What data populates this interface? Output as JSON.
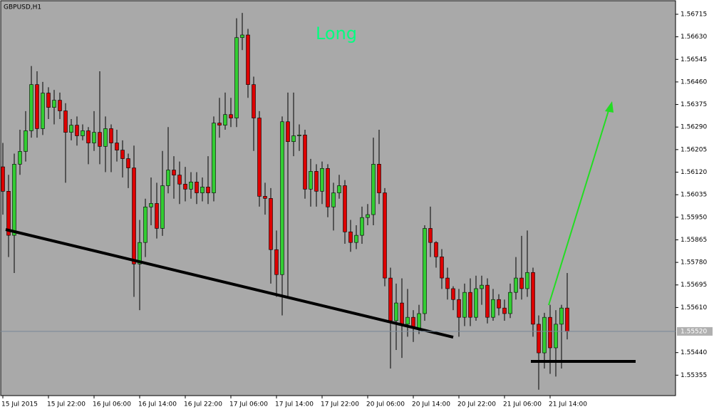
{
  "chart_data": {
    "type": "candlestick",
    "title": "GBPUSD,H1",
    "annotation": "Long",
    "up_color": "#32cd32",
    "down_color": "#dd0000",
    "wick_color": "#000000",
    "background": "#a9a9a9",
    "categories": [
      "15 Jul 2015",
      null,
      null,
      null,
      null,
      null,
      null,
      null,
      "15 Jul 22:00",
      null,
      null,
      null,
      null,
      null,
      null,
      null,
      "16 Jul 06:00",
      null,
      null,
      null,
      null,
      null,
      null,
      null,
      "16 Jul 14:00",
      null,
      null,
      null,
      null,
      null,
      null,
      null,
      "16 Jul 22:00",
      null,
      null,
      null,
      null,
      null,
      null,
      null,
      "17 Jul 06:00",
      null,
      null,
      null,
      null,
      null,
      null,
      null,
      "17 Jul 14:00",
      null,
      null,
      null,
      null,
      null,
      null,
      null,
      "17 Jul 22:00",
      null,
      null,
      null,
      null,
      null,
      null,
      null,
      "20 Jul 06:00",
      null,
      null,
      null,
      null,
      null,
      null,
      null,
      "20 Jul 14:00",
      null,
      null,
      null,
      null,
      null,
      null,
      null,
      "20 Jul 22:00",
      null,
      null,
      null,
      null,
      null,
      null,
      null,
      "21 Jul 06:00",
      null,
      null,
      null,
      null,
      null,
      null,
      null,
      "21 Jul 14:00",
      null,
      null,
      null
    ],
    "open": [
      1.5614,
      1.56048,
      1.55882,
      1.5615,
      1.56198,
      1.56276,
      1.5645,
      1.56284,
      1.56418,
      1.56364,
      1.56391,
      1.56351,
      1.5627,
      1.56297,
      1.56257,
      1.56276,
      1.5623,
      1.5627,
      1.56217,
      1.56284,
      1.5623,
      1.56203,
      1.56171,
      1.56136,
      1.55774,
      1.55855,
      1.55989,
      1.56002,
      1.55908,
      1.56069,
      1.56128,
      1.56109,
      1.56075,
      1.56056,
      1.56083,
      1.56042,
      1.56064,
      1.56042,
      1.56305,
      1.56297,
      1.56337,
      1.56324,
      1.56627,
      1.56637,
      1.5645,
      1.56324,
      1.56029,
      1.56021,
      1.55828,
      1.55734,
      1.5631,
      1.56235,
      1.56257,
      1.5626,
      1.56056,
      1.56123,
      1.56048,
      1.56134,
      1.55989,
      1.56042,
      1.56069,
      1.55895,
      1.55855,
      1.55882,
      1.55949,
      1.5596,
      1.5615,
      1.56042,
      1.55721,
      1.5556,
      1.55627,
      1.55547,
      1.55573,
      1.55533,
      1.55587,
      1.55908,
      1.55855,
      1.55801,
      1.55721,
      1.55681,
      1.5564,
      1.55573,
      1.55667,
      1.55573,
      1.55681,
      1.55694,
      1.55573,
      1.5564,
      1.55608,
      1.55587,
      1.55667,
      1.55721,
      1.55681,
      1.55742,
      1.55547,
      1.55439,
      1.55573,
      1.55458,
      1.55547,
      1.55608
    ],
    "high": [
      1.5623,
      1.5611,
      1.5619,
      1.5628,
      1.5635,
      1.5652,
      1.565,
      1.5646,
      1.5644,
      1.5643,
      1.5642,
      1.5638,
      1.5632,
      1.5633,
      1.563,
      1.5629,
      1.5635,
      1.565,
      1.5633,
      1.563,
      1.5628,
      1.5624,
      1.5619,
      1.5622,
      1.5594,
      1.5602,
      1.561,
      1.5608,
      1.562,
      1.5629,
      1.5618,
      1.5616,
      1.5614,
      1.5612,
      1.5612,
      1.561,
      1.5618,
      1.5633,
      1.564,
      1.5642,
      1.564,
      1.567,
      1.5672,
      1.5666,
      1.5648,
      1.5635,
      1.5608,
      1.5606,
      1.559,
      1.5633,
      1.5642,
      1.5642,
      1.563,
      1.5628,
      1.5617,
      1.5615,
      1.5616,
      1.5615,
      1.5608,
      1.5611,
      1.5609,
      1.5594,
      1.5592,
      1.5599,
      1.56,
      1.5625,
      1.5628,
      1.5606,
      1.5576,
      1.557,
      1.5572,
      1.5568,
      1.556,
      1.5562,
      1.5592,
      1.5599,
      1.5586,
      1.5583,
      1.5576,
      1.5569,
      1.5568,
      1.557,
      1.5572,
      1.5573,
      1.5573,
      1.5572,
      1.5568,
      1.5566,
      1.5564,
      1.557,
      1.558,
      1.5588,
      1.559,
      1.5576,
      1.5558,
      1.5559,
      1.5562,
      1.556,
      1.5562,
      1.5574
    ],
    "low": [
      1.5596,
      1.558,
      1.5574,
      1.5611,
      1.5616,
      1.5625,
      1.5625,
      1.5626,
      1.5632,
      1.563,
      1.5632,
      1.5608,
      1.5624,
      1.5622,
      1.5624,
      1.5615,
      1.562,
      1.5615,
      1.5612,
      1.5612,
      1.5616,
      1.561,
      1.5606,
      1.5565,
      1.556,
      1.558,
      1.5592,
      1.5587,
      1.5588,
      1.5604,
      1.5602,
      1.56,
      1.5601,
      1.5602,
      1.56,
      1.5601,
      1.56,
      1.5601,
      1.5625,
      1.5628,
      1.5629,
      1.5629,
      1.5658,
      1.564,
      1.562,
      1.5599,
      1.5596,
      1.557,
      1.5565,
      1.5558,
      1.5565,
      1.5618,
      1.562,
      1.5602,
      1.5599,
      1.5599,
      1.56,
      1.5595,
      1.559,
      1.5602,
      1.5585,
      1.5582,
      1.5583,
      1.5585,
      1.5592,
      1.5592,
      1.56,
      1.5569,
      1.5538,
      1.5545,
      1.5542,
      1.555,
      1.5548,
      1.5551,
      1.5556,
      1.558,
      1.5576,
      1.5568,
      1.5564,
      1.556,
      1.555,
      1.5554,
      1.5554,
      1.5556,
      1.5562,
      1.5555,
      1.5556,
      1.5558,
      1.5556,
      1.5557,
      1.5564,
      1.5564,
      1.5565,
      1.555,
      1.553,
      1.5538,
      1.5536,
      1.5535,
      1.5538,
      1.5549
    ],
    "close": [
      1.56048,
      1.55882,
      1.5615,
      1.56198,
      1.56276,
      1.5645,
      1.56284,
      1.56418,
      1.56364,
      1.56391,
      1.56351,
      1.5627,
      1.56297,
      1.56257,
      1.56276,
      1.5623,
      1.5627,
      1.56217,
      1.56284,
      1.5623,
      1.56203,
      1.56171,
      1.56136,
      1.55774,
      1.55855,
      1.55989,
      1.56002,
      1.55908,
      1.56069,
      1.56128,
      1.56109,
      1.56075,
      1.56056,
      1.56083,
      1.56042,
      1.56064,
      1.56042,
      1.56305,
      1.56297,
      1.56337,
      1.56324,
      1.56627,
      1.56637,
      1.5645,
      1.56324,
      1.56029,
      1.56021,
      1.55828,
      1.55734,
      1.5631,
      1.56235,
      1.56257,
      1.5626,
      1.56056,
      1.56123,
      1.56048,
      1.56134,
      1.55989,
      1.56042,
      1.56069,
      1.55895,
      1.55855,
      1.55882,
      1.55949,
      1.5596,
      1.5615,
      1.56042,
      1.55721,
      1.5556,
      1.55627,
      1.55547,
      1.55573,
      1.55533,
      1.55587,
      1.55908,
      1.55855,
      1.55801,
      1.55721,
      1.55681,
      1.5564,
      1.55573,
      1.55667,
      1.55573,
      1.55681,
      1.55694,
      1.55573,
      1.5564,
      1.55608,
      1.55587,
      1.55667,
      1.55721,
      1.55681,
      1.55742,
      1.55547,
      1.55439,
      1.55573,
      1.55458,
      1.55547,
      1.55608,
      1.5552
    ],
    "ylim": [
      1.55278,
      1.56766
    ],
    "yticks": [
      1.56715,
      {
        "value": 1.5663,
        "label": "1.56630"
      },
      1.56545,
      {
        "value": 1.5646,
        "label": "1.56460"
      },
      1.56375,
      {
        "value": 1.5629,
        "label": "1.56290"
      },
      1.56205,
      {
        "value": 1.5612,
        "label": "1.56120"
      },
      1.56035,
      {
        "value": 1.5595,
        "label": "1.55950"
      },
      1.55865,
      {
        "value": 1.5578,
        "label": "1.55780"
      },
      1.55695,
      {
        "value": 1.5561,
        "label": "1.55610"
      },
      {
        "value": 1.5544,
        "label": "1.55440"
      },
      1.55355
    ],
    "price_line": {
      "value": 1.5552,
      "label": "1.55520"
    }
  }
}
